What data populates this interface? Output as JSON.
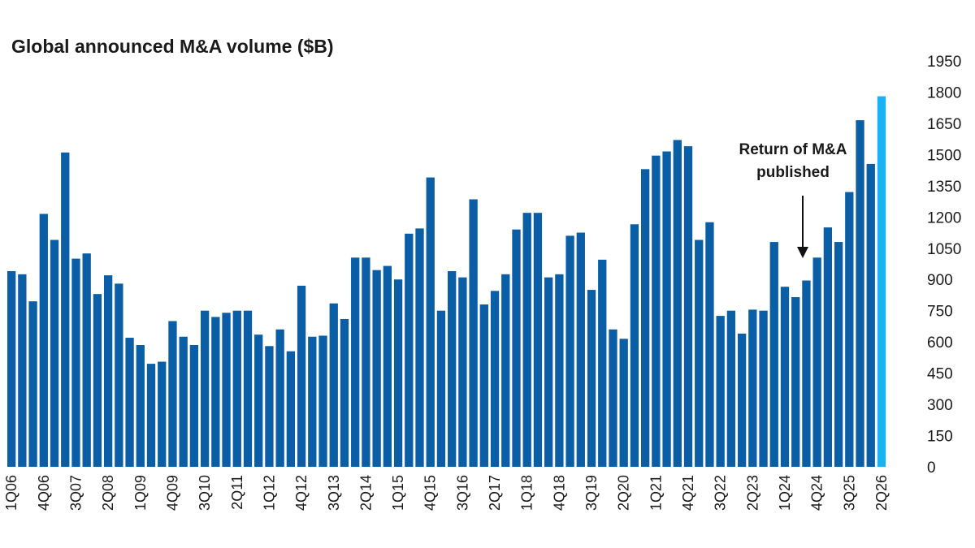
{
  "chart_data": {
    "type": "bar",
    "title": "Global announced M&A volume ($B)",
    "xlabel": "",
    "ylabel": "",
    "ylim": [
      0,
      1950
    ],
    "yticks": [
      0,
      150,
      300,
      450,
      600,
      750,
      900,
      1050,
      1200,
      1350,
      1500,
      1650,
      1800,
      1950
    ],
    "y_axis_side": "right",
    "grid": false,
    "legend": "none",
    "colors": {
      "bar": "#0a5ea6",
      "highlight": "#1ab2f2",
      "text": "#1a1a1a"
    },
    "categories": [
      "1Q06",
      "2Q06",
      "3Q06",
      "4Q06",
      "1Q07",
      "2Q07",
      "3Q07",
      "4Q07",
      "1Q08",
      "2Q08",
      "3Q08",
      "4Q08",
      "1Q09",
      "2Q09",
      "3Q09",
      "4Q09",
      "1Q10",
      "2Q10",
      "3Q10",
      "4Q10",
      "1Q11",
      "2Q11",
      "3Q11",
      "4Q11",
      "1Q12",
      "2Q12",
      "3Q12",
      "4Q12",
      "1Q13",
      "2Q13",
      "3Q13",
      "4Q13",
      "1Q14",
      "2Q14",
      "3Q14",
      "4Q14",
      "1Q15",
      "2Q15",
      "3Q15",
      "4Q15",
      "1Q16",
      "2Q16",
      "3Q16",
      "4Q16",
      "1Q17",
      "2Q17",
      "3Q17",
      "4Q17",
      "1Q18",
      "2Q18",
      "3Q18",
      "4Q18",
      "1Q19",
      "2Q19",
      "3Q19",
      "4Q19",
      "1Q20",
      "2Q20",
      "3Q20",
      "4Q20",
      "1Q21",
      "2Q21",
      "3Q21",
      "4Q21",
      "1Q22",
      "2Q22",
      "3Q22",
      "4Q22",
      "1Q23",
      "2Q23",
      "3Q23",
      "4Q23",
      "1Q24",
      "2Q24",
      "3Q24",
      "4Q24",
      "1Q25",
      "2Q25",
      "3Q25",
      "4Q25",
      "1Q26",
      "2Q26"
    ],
    "tick_labels": [
      "1Q06",
      "4Q06",
      "3Q07",
      "2Q08",
      "1Q09",
      "4Q09",
      "3Q10",
      "2Q11",
      "1Q12",
      "4Q12",
      "3Q13",
      "2Q14",
      "1Q15",
      "4Q15",
      "3Q16",
      "2Q17",
      "1Q18",
      "4Q18",
      "3Q19",
      "2Q20",
      "1Q21",
      "4Q21",
      "3Q22",
      "2Q23",
      "1Q24",
      "4Q24",
      "3Q25",
      "2Q26"
    ],
    "values": [
      940,
      925,
      795,
      1215,
      1090,
      1510,
      1000,
      1025,
      830,
      920,
      880,
      620,
      585,
      495,
      505,
      700,
      625,
      585,
      750,
      720,
      740,
      750,
      750,
      635,
      580,
      660,
      555,
      870,
      625,
      630,
      785,
      710,
      1005,
      1005,
      945,
      965,
      900,
      1120,
      1145,
      1390,
      750,
      940,
      910,
      1285,
      780,
      845,
      925,
      1140,
      1220,
      1220,
      910,
      925,
      1110,
      1125,
      850,
      995,
      660,
      615,
      1165,
      1430,
      1495,
      1515,
      1570,
      1540,
      1090,
      1175,
      725,
      750,
      640,
      755,
      750,
      1080,
      865,
      815,
      895,
      1005,
      1150,
      1080,
      1320,
      1665,
      1455,
      1780
    ],
    "highlight_index": 81,
    "annotation": {
      "lines": [
        "Return of M&A",
        "published"
      ],
      "target": "1Q24"
    }
  }
}
